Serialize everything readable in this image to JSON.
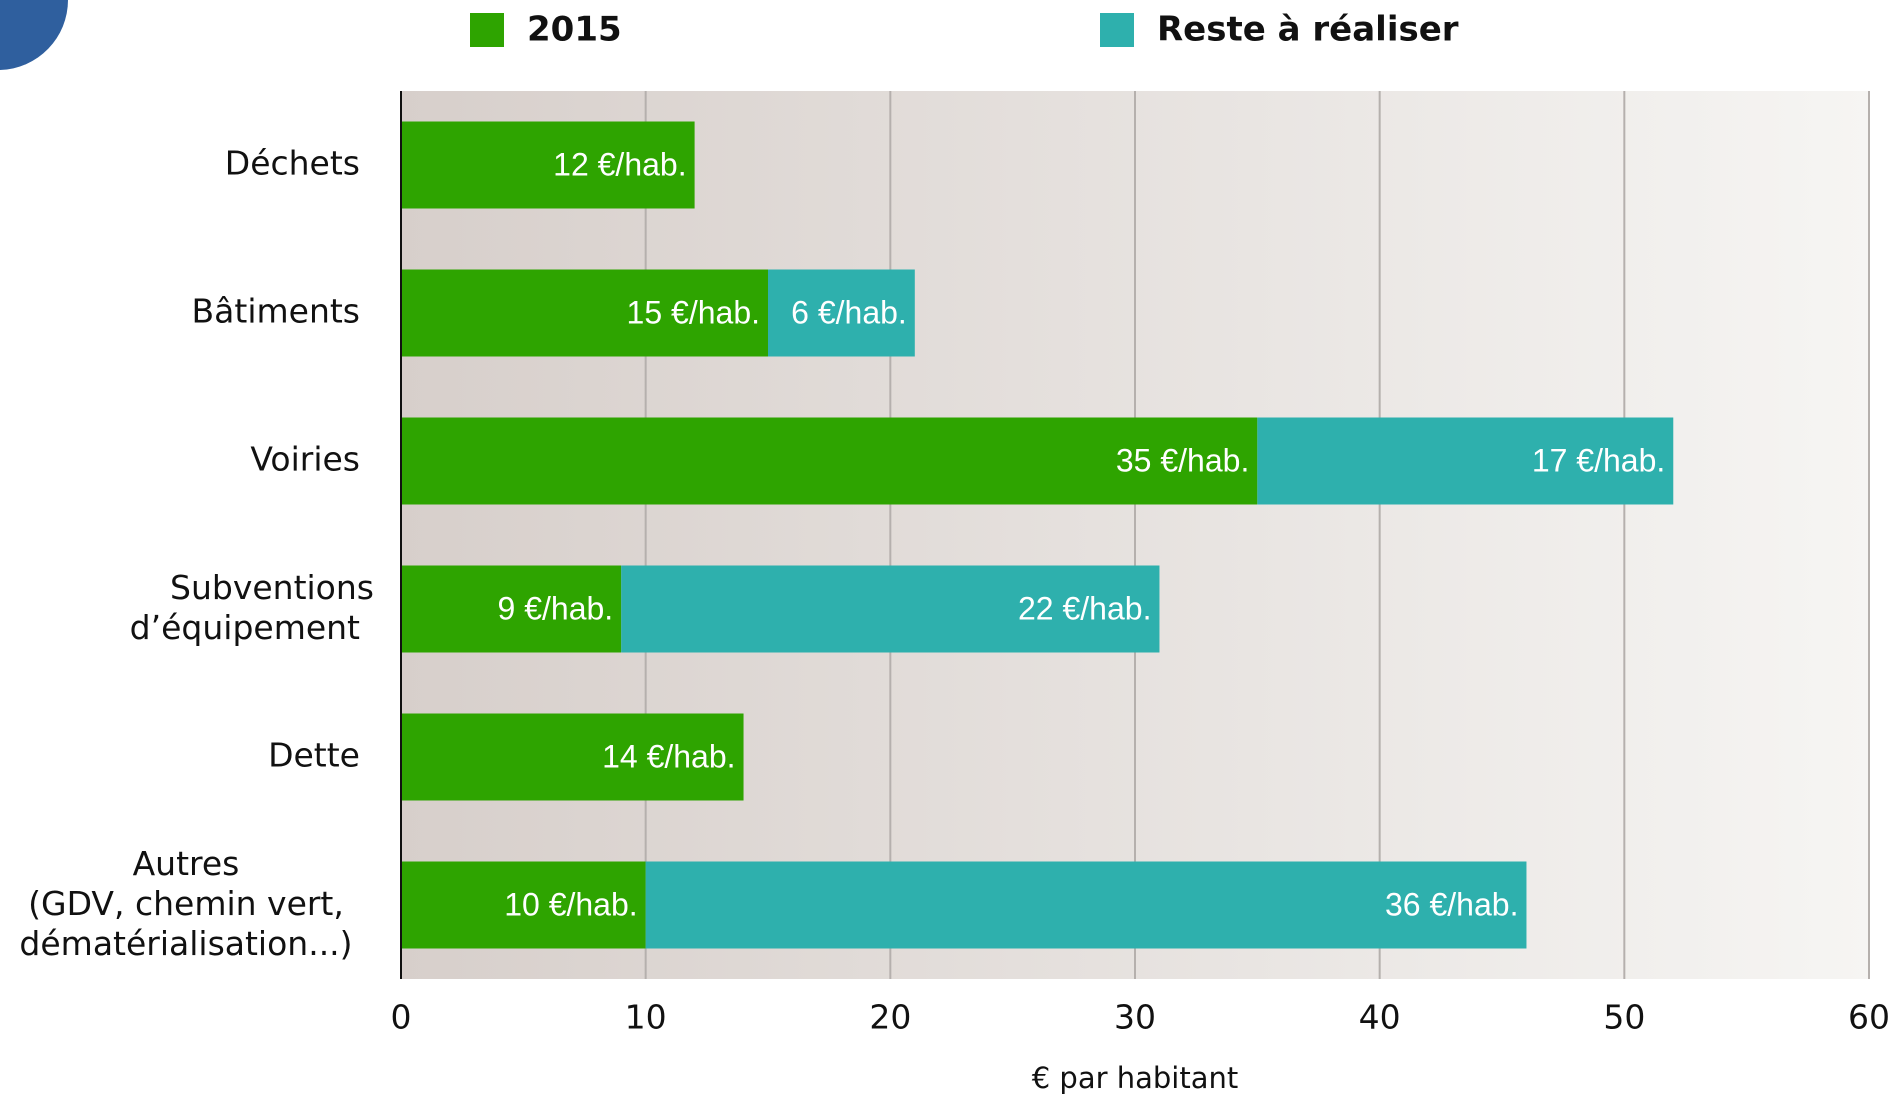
{
  "chart_data": {
    "type": "stacked-barh",
    "categories": [
      "Déchets",
      "Bâtiments",
      "Voiries",
      "Subventions\nd’équipement",
      "Dette",
      "Autres\n(GDV, chemin vert,\ndématérialisation...)"
    ],
    "series": [
      {
        "name": "2015",
        "color": "#2ea400",
        "values": [
          12,
          15,
          35,
          9,
          14,
          10
        ],
        "value_labels": [
          "12 €/hab.",
          "15 €/hab.",
          "35 €/hab.",
          "9 €/hab.",
          "14 €/hab.",
          "10 €/hab."
        ]
      },
      {
        "name": "Reste à réaliser",
        "color": "#2eb0ad",
        "values": [
          null,
          6,
          17,
          22,
          null,
          36
        ],
        "value_labels": [
          null,
          "6 €/hab.",
          "17 €/hab.",
          "22 €/hab.",
          null,
          "36 €/hab."
        ]
      }
    ],
    "xlabel": "€ par habitant",
    "xlim": [
      0,
      60
    ],
    "xticks": [
      0,
      10,
      20,
      30,
      40,
      50,
      60
    ],
    "grid": true
  }
}
